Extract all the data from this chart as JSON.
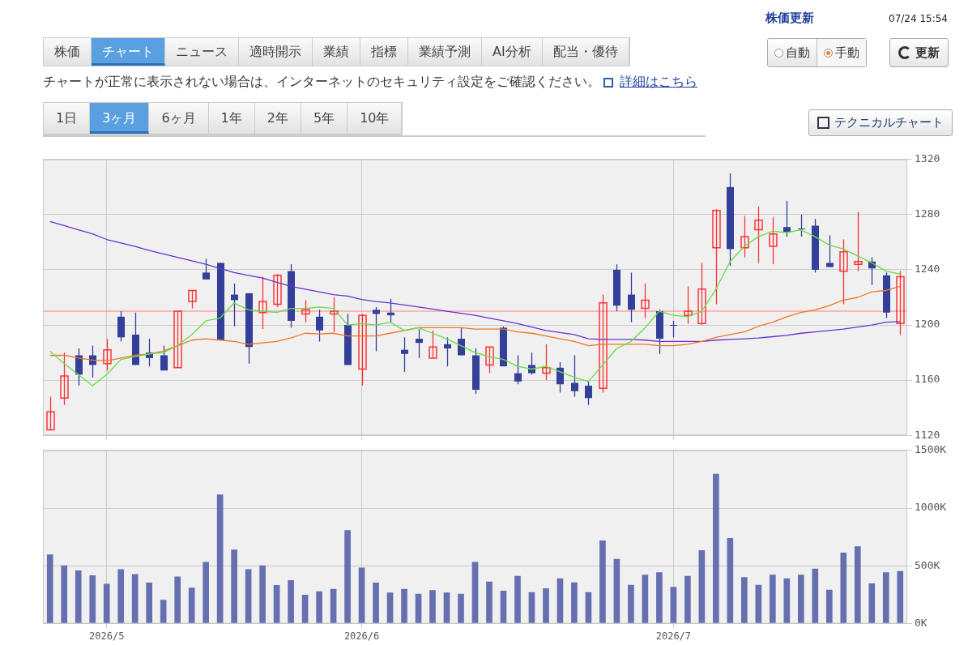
{
  "chart_data": [
    {
      "type": "other",
      "annotations": [
        "株価更新",
        "07/24 15:54",
        "株価",
        "チャート",
        "ニュース",
        "適時開示",
        "業績",
        "指標",
        "業績予測",
        "AI分析",
        "配当・優待",
        "自動",
        "手動",
        "更新",
        "チャートが正常に表示されない場合は、インターネットのセキュリティ設定をご確認ください。",
        "詳細はこちら",
        "1日",
        "3ヶ月",
        "6ヶ月",
        "1年",
        "2年",
        "5年",
        "10年",
        "テクニカルチャート"
      ]
    },
    {
      "type": "candlestick",
      "tick_labels": "y",
      "grid": true,
      "categories": [
        null,
        null,
        null,
        null,
        "2026/5",
        null,
        null,
        null,
        null,
        null,
        null,
        null,
        null,
        null,
        null,
        null,
        null,
        null,
        null,
        null,
        null,
        null,
        "2026/6",
        null,
        null,
        null,
        null,
        null,
        null,
        null,
        null,
        null,
        null,
        null,
        null,
        null,
        null,
        null,
        null,
        null,
        null,
        null,
        null,
        null,
        "2026/7",
        null,
        null,
        null,
        null,
        null,
        null,
        null,
        null,
        null,
        null,
        null,
        null,
        null,
        null,
        null,
        null
      ],
      "ohlc": [
        [
          1124,
          1148,
          1124,
          1137
        ],
        [
          1147,
          1180,
          1142,
          1163
        ],
        [
          1178,
          1183,
          1156,
          1164
        ],
        [
          1178,
          1185,
          1162,
          1171
        ],
        [
          1172,
          1190,
          1167,
          1182
        ],
        [
          1206,
          1210,
          1188,
          1191
        ],
        [
          1193,
          1209,
          1171,
          1171
        ],
        [
          1180,
          1190,
          1170,
          1176
        ],
        [
          1178,
          1185,
          1167,
          1167
        ],
        [
          1169,
          1210,
          1169,
          1210
        ],
        [
          1217,
          1225,
          1212,
          1225
        ],
        [
          1238,
          1248,
          1233,
          1233
        ],
        [
          1245,
          1245,
          1189,
          1189
        ],
        [
          1222,
          1230,
          1199,
          1218
        ],
        [
          1223,
          1223,
          1172,
          1184
        ],
        [
          1209,
          1235,
          1197,
          1217
        ],
        [
          1215,
          1237,
          1213,
          1236
        ],
        [
          1239,
          1244,
          1198,
          1203
        ],
        [
          1208,
          1218,
          1202,
          1211
        ],
        [
          1206,
          1211,
          1188,
          1196
        ],
        [
          1208,
          1220,
          1195,
          1210
        ],
        [
          1200,
          1208,
          1171,
          1171
        ],
        [
          1168,
          1208,
          1156,
          1207
        ],
        [
          1211,
          1213,
          1181,
          1208
        ],
        [
          1209,
          1219,
          1202,
          1207
        ],
        [
          1182,
          1191,
          1166,
          1179
        ],
        [
          1190,
          1197,
          1176,
          1187
        ],
        [
          1176,
          1196,
          1176,
          1184
        ],
        [
          1186,
          1191,
          1170,
          1183
        ],
        [
          1190,
          1198,
          1178,
          1178
        ],
        [
          1178,
          1183,
          1150,
          1153
        ],
        [
          1171,
          1184,
          1165,
          1184
        ],
        [
          1198,
          1199,
          1170,
          1170
        ],
        [
          1165,
          1178,
          1157,
          1159
        ],
        [
          1171,
          1180,
          1164,
          1165
        ],
        [
          1165,
          1186,
          1160,
          1169
        ],
        [
          1169,
          1173,
          1151,
          1157
        ],
        [
          1158,
          1178,
          1148,
          1152
        ],
        [
          1156,
          1159,
          1142,
          1147
        ],
        [
          1154,
          1222,
          1151,
          1216
        ],
        [
          1240,
          1244,
          1210,
          1214
        ],
        [
          1222,
          1238,
          1202,
          1211
        ],
        [
          1212,
          1230,
          1205,
          1218
        ],
        [
          1210,
          1211,
          1179,
          1190
        ],
        [
          1200,
          1203,
          1191,
          1200
        ],
        [
          1207,
          1228,
          1201,
          1210
        ],
        [
          1201,
          1245,
          1200,
          1226
        ],
        [
          1256,
          1284,
          1215,
          1283
        ],
        [
          1300,
          1310,
          1243,
          1255
        ],
        [
          1256,
          1279,
          1249,
          1264
        ],
        [
          1269,
          1286,
          1245,
          1276
        ],
        [
          1257,
          1278,
          1244,
          1266
        ],
        [
          1271,
          1290,
          1264,
          1267
        ],
        [
          1270,
          1280,
          1264,
          1270
        ],
        [
          1272,
          1277,
          1238,
          1240
        ],
        [
          1245,
          1265,
          1242,
          1242
        ],
        [
          1239,
          1262,
          1215,
          1253
        ],
        [
          1244,
          1282,
          1239,
          1246
        ],
        [
          1246,
          1249,
          1229,
          1241
        ],
        [
          1236,
          1238,
          1205,
          1209
        ],
        [
          1201,
          1239,
          1193,
          1235
        ]
      ],
      "colors": [
        "#ff3333",
        "#ff3333",
        "#333f99",
        "#333f99",
        "#ff3333",
        "#333f99",
        "#333f99",
        "#333f99",
        "#333f99",
        "#ff3333",
        "#ff3333",
        "#333f99",
        "#333f99",
        "#333f99",
        "#333f99",
        "#ff3333",
        "#ff3333",
        "#333f99",
        "#ff3333",
        "#333f99",
        "#ff3333",
        "#333f99",
        "#ff3333",
        "#333f99",
        "#333f99",
        "#333f99",
        "#333f99",
        "#ff3333",
        "#333f99",
        "#333f99",
        "#333f99",
        "#ff3333",
        "#333f99",
        "#333f99",
        "#333f99",
        "#ff3333",
        "#333f99",
        "#333f99",
        "#333f99",
        "#ff3333",
        "#333f99",
        "#333f99",
        "#ff3333",
        "#333f99",
        "#333f99",
        "#ff3333",
        "#ff3333",
        "#ff3333",
        "#333f99",
        "#ff3333",
        "#ff3333",
        "#ff3333",
        "#333f99",
        "#333f99",
        "#333f99",
        "#333f99",
        "#ff3333",
        "#ff3333",
        "#333f99",
        "#333f99",
        "#ff3333"
      ],
      "series": [
        {
          "type": "line",
          "color": "#66dd44",
          "values": [
            1181,
            1172,
            1164,
            1156,
            1164,
            1175,
            1177,
            1179,
            1180,
            1185,
            1193,
            1203,
            1205,
            1216,
            1211,
            1210,
            1209,
            1212,
            1212,
            1213,
            1212,
            1200,
            1201,
            1200,
            1202,
            1196,
            1198,
            1194,
            1190,
            1185,
            1180,
            1177,
            1175,
            1170,
            1168,
            1170,
            1166,
            1162,
            1159,
            1171,
            1183,
            1188,
            1198,
            1210,
            1207,
            1206,
            1210,
            1226,
            1246,
            1257,
            1264,
            1268,
            1267,
            1269,
            1264,
            1258,
            1255,
            1250,
            1245,
            1239,
            1237
          ]
        },
        {
          "type": "line",
          "color": "#ee7722",
          "values": [
            1178,
            1178,
            1176,
            1174.5,
            1174,
            1176,
            1178,
            1179,
            1181,
            1185,
            1189,
            1190,
            1189,
            1188,
            1186,
            1187,
            1188,
            1190.5,
            1194,
            1193.5,
            1194,
            1192,
            1192,
            1192,
            1194,
            1196,
            1198,
            1198,
            1198,
            1198,
            1197,
            1197,
            1197,
            1195,
            1194,
            1192,
            1190,
            1188,
            1185,
            1186,
            1186,
            1186,
            1186,
            1185,
            1185,
            1186,
            1188,
            1191,
            1193,
            1195,
            1199,
            1202,
            1206,
            1209,
            1211,
            1214,
            1218,
            1220,
            1224,
            1225,
            1228
          ]
        },
        {
          "type": "line",
          "color": "#6633cc",
          "values": [
            1275,
            1272,
            1269,
            1266,
            1262,
            1259.5,
            1257,
            1254,
            1251.5,
            1249,
            1246.5,
            1244,
            1241,
            1238,
            1236,
            1234,
            1231,
            1228,
            1226,
            1224,
            1222,
            1221,
            1218.5,
            1217,
            1216,
            1214.5,
            1213,
            1211.5,
            1210,
            1208.5,
            1207,
            1205,
            1203,
            1201,
            1198.5,
            1196,
            1194.5,
            1193,
            1190,
            1189.5,
            1189.5,
            1189.5,
            1189,
            1188,
            1188,
            1188,
            1188,
            1189,
            1189.5,
            1190,
            1190.5,
            1191.5,
            1192.5,
            1194,
            1195,
            1196,
            1197,
            1198.5,
            1200,
            1202,
            1202.5
          ]
        }
      ],
      "ref_lines": [
        {
          "axis": "y",
          "value": 1210,
          "color": "#ff8080"
        }
      ],
      "ylim": [
        1120,
        1320
      ],
      "yticks": [
        1120,
        1160,
        1200,
        1240,
        1280,
        1320
      ]
    },
    {
      "type": "bar",
      "grid": true,
      "color": "#6670b0",
      "categories": [
        null,
        null,
        null,
        null,
        "2026/5",
        null,
        null,
        null,
        null,
        null,
        null,
        null,
        null,
        null,
        null,
        null,
        null,
        null,
        null,
        null,
        null,
        null,
        "2026/6",
        null,
        null,
        null,
        null,
        null,
        null,
        null,
        null,
        null,
        null,
        null,
        null,
        null,
        null,
        null,
        null,
        null,
        null,
        null,
        null,
        null,
        "2026/7",
        null,
        null,
        null,
        null,
        null,
        null,
        null,
        null,
        null,
        null,
        null,
        null,
        null,
        null,
        null,
        null
      ],
      "values": [
        596,
        501,
        458,
        416,
        342,
        468,
        427,
        352,
        203,
        406,
        308,
        532,
        1116,
        638,
        468,
        501,
        332,
        373,
        247,
        278,
        298,
        807,
        483,
        352,
        267,
        298,
        257,
        288,
        267,
        257,
        532,
        362,
        282,
        411,
        271,
        303,
        389,
        355,
        271,
        718,
        558,
        334,
        421,
        442,
        316,
        411,
        634,
        1295,
        739,
        400,
        334,
        421,
        389,
        421,
        474,
        292,
        613,
        666,
        345,
        442,
        453
      ],
      "ylim": [
        0,
        1500
      ],
      "yticks": [
        {
          "value": 0,
          "label": "0K"
        },
        {
          "value": 500,
          "label": "500K"
        },
        {
          "value": 1000,
          "label": "1000K"
        },
        {
          "value": 1500,
          "label": "1500K"
        }
      ]
    }
  ]
}
